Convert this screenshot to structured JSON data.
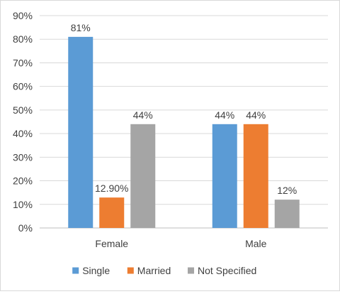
{
  "chart_data": {
    "type": "bar",
    "categories": [
      "Female",
      "Male"
    ],
    "series": [
      {
        "name": "Single",
        "values": [
          81,
          44
        ],
        "labels": [
          "81%",
          "44%"
        ],
        "color": "#5B9BD5"
      },
      {
        "name": "Married",
        "values": [
          12.9,
          44
        ],
        "labels": [
          "12.90%",
          "44%"
        ],
        "color": "#ED7D31"
      },
      {
        "name": "Not Specified",
        "values": [
          44,
          12
        ],
        "labels": [
          "44%",
          "12%"
        ],
        "color": "#A5A5A5"
      }
    ],
    "yticks": [
      "0%",
      "10%",
      "20%",
      "30%",
      "40%",
      "50%",
      "60%",
      "70%",
      "80%",
      "90%"
    ],
    "ylim": [
      0,
      90
    ],
    "grid": true,
    "legend_position": "bottom",
    "title": "",
    "xlabel": "",
    "ylabel": ""
  }
}
